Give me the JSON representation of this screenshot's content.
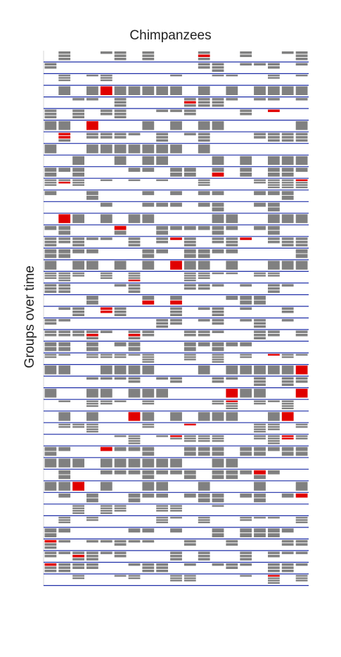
{
  "chart_data": {
    "type": "heatmap",
    "title": "Chimpanzees",
    "xlabel": "",
    "ylabel": "Groups over time",
    "n_columns": 19,
    "n_rows": 46,
    "colors": {
      "member": "#808080",
      "highlight": "#e00000",
      "separator": "#1f2fa8",
      "grid": "#d7d7d7"
    },
    "legend": "none"
  }
}
